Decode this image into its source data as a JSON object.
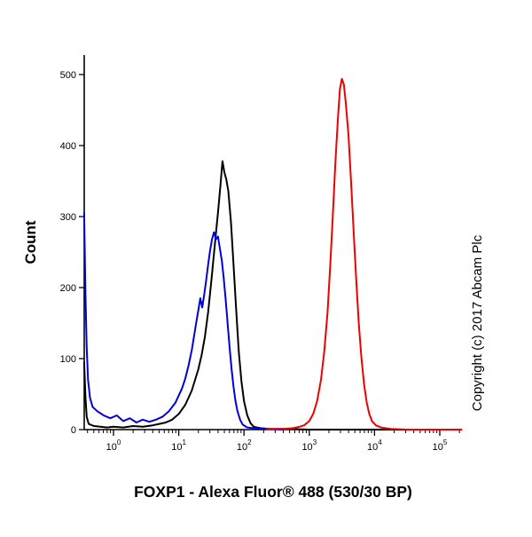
{
  "copyright": "Copyright (c) 2017 Abcam Plc",
  "chart_data": {
    "type": "line",
    "subtype": "flow-cytometry-histogram",
    "title": "",
    "xlabel": "FOXP1 - Alexa Fluor® 488 (530/30 BP)",
    "ylabel": "Count",
    "x_scale": "log10",
    "x_log_range": [
      -0.45,
      5.33
    ],
    "xticks_exponents": [
      0,
      1,
      2,
      3,
      4,
      5
    ],
    "x_tick_format": "10^n",
    "ylim": [
      0,
      527
    ],
    "yticks": [
      0,
      100,
      200,
      300,
      400,
      500
    ],
    "grid": false,
    "legend": "none",
    "series": [
      {
        "name": "black",
        "color": "#000000",
        "points": [
          [
            -0.45,
            95
          ],
          [
            -0.43,
            45
          ],
          [
            -0.41,
            18
          ],
          [
            -0.38,
            8
          ],
          [
            -0.3,
            5
          ],
          [
            -0.2,
            4
          ],
          [
            -0.1,
            3
          ],
          [
            0,
            4
          ],
          [
            0.15,
            3
          ],
          [
            0.3,
            5
          ],
          [
            0.45,
            4
          ],
          [
            0.6,
            6
          ],
          [
            0.7,
            8
          ],
          [
            0.8,
            10
          ],
          [
            0.9,
            14
          ],
          [
            1.0,
            22
          ],
          [
            1.1,
            35
          ],
          [
            1.2,
            55
          ],
          [
            1.3,
            85
          ],
          [
            1.35,
            105
          ],
          [
            1.4,
            130
          ],
          [
            1.45,
            165
          ],
          [
            1.5,
            210
          ],
          [
            1.55,
            258
          ],
          [
            1.6,
            305
          ],
          [
            1.64,
            345
          ],
          [
            1.67,
            378
          ],
          [
            1.7,
            362
          ],
          [
            1.73,
            352
          ],
          [
            1.76,
            336
          ],
          [
            1.8,
            292
          ],
          [
            1.84,
            232
          ],
          [
            1.88,
            168
          ],
          [
            1.92,
            110
          ],
          [
            1.96,
            68
          ],
          [
            2.0,
            40
          ],
          [
            2.05,
            20
          ],
          [
            2.1,
            9
          ],
          [
            2.15,
            4
          ],
          [
            2.25,
            2
          ],
          [
            2.4,
            1
          ],
          [
            2.7,
            1
          ],
          [
            3.0,
            0
          ],
          [
            5.33,
            0
          ]
        ]
      },
      {
        "name": "blue",
        "color": "#0000dd",
        "points": [
          [
            -0.45,
            305
          ],
          [
            -0.43,
            190
          ],
          [
            -0.41,
            115
          ],
          [
            -0.39,
            70
          ],
          [
            -0.36,
            45
          ],
          [
            -0.32,
            32
          ],
          [
            -0.25,
            26
          ],
          [
            -0.15,
            20
          ],
          [
            -0.05,
            16
          ],
          [
            0.05,
            20
          ],
          [
            0.15,
            12
          ],
          [
            0.25,
            16
          ],
          [
            0.35,
            10
          ],
          [
            0.45,
            14
          ],
          [
            0.55,
            11
          ],
          [
            0.65,
            14
          ],
          [
            0.75,
            18
          ],
          [
            0.85,
            26
          ],
          [
            0.95,
            38
          ],
          [
            1.0,
            48
          ],
          [
            1.05,
            58
          ],
          [
            1.1,
            72
          ],
          [
            1.15,
            90
          ],
          [
            1.2,
            112
          ],
          [
            1.24,
            135
          ],
          [
            1.27,
            152
          ],
          [
            1.3,
            168
          ],
          [
            1.33,
            185
          ],
          [
            1.36,
            172
          ],
          [
            1.39,
            190
          ],
          [
            1.42,
            210
          ],
          [
            1.45,
            232
          ],
          [
            1.48,
            252
          ],
          [
            1.51,
            268
          ],
          [
            1.54,
            278
          ],
          [
            1.57,
            268
          ],
          [
            1.6,
            272
          ],
          [
            1.63,
            255
          ],
          [
            1.66,
            238
          ],
          [
            1.69,
            212
          ],
          [
            1.72,
            182
          ],
          [
            1.75,
            148
          ],
          [
            1.78,
            115
          ],
          [
            1.81,
            85
          ],
          [
            1.84,
            60
          ],
          [
            1.87,
            40
          ],
          [
            1.9,
            26
          ],
          [
            1.94,
            14
          ],
          [
            1.98,
            7
          ],
          [
            2.05,
            3
          ],
          [
            2.15,
            2
          ],
          [
            2.35,
            1
          ],
          [
            2.6,
            0
          ]
        ]
      },
      {
        "name": "red",
        "color": "#ee0000",
        "points": [
          [
            2.35,
            1
          ],
          [
            2.6,
            1
          ],
          [
            2.75,
            2
          ],
          [
            2.85,
            4
          ],
          [
            2.92,
            6
          ],
          [
            3.0,
            12
          ],
          [
            3.06,
            22
          ],
          [
            3.12,
            40
          ],
          [
            3.18,
            70
          ],
          [
            3.23,
            110
          ],
          [
            3.28,
            165
          ],
          [
            3.32,
            230
          ],
          [
            3.36,
            300
          ],
          [
            3.4,
            375
          ],
          [
            3.44,
            440
          ],
          [
            3.47,
            480
          ],
          [
            3.5,
            494
          ],
          [
            3.53,
            486
          ],
          [
            3.56,
            460
          ],
          [
            3.6,
            415
          ],
          [
            3.64,
            350
          ],
          [
            3.68,
            280
          ],
          [
            3.72,
            210
          ],
          [
            3.76,
            148
          ],
          [
            3.8,
            100
          ],
          [
            3.84,
            64
          ],
          [
            3.88,
            38
          ],
          [
            3.92,
            22
          ],
          [
            3.96,
            12
          ],
          [
            4.02,
            6
          ],
          [
            4.1,
            3
          ],
          [
            4.25,
            1
          ],
          [
            4.5,
            0
          ],
          [
            5.33,
            0
          ]
        ]
      }
    ]
  }
}
